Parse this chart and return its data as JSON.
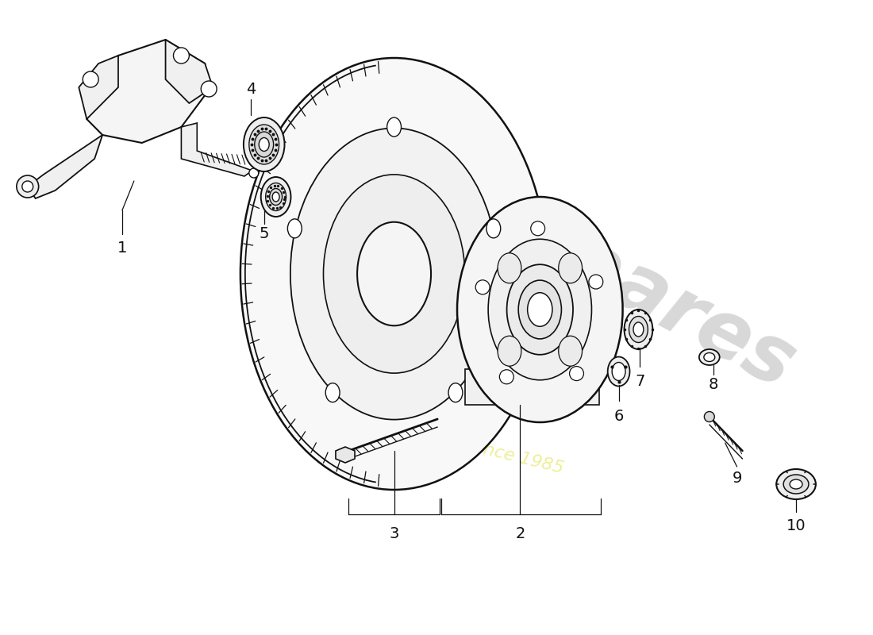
{
  "background_color": "#ffffff",
  "line_color": "#111111",
  "watermark_color1": "#d8d8d8",
  "watermark_color2": "#eeee99",
  "figsize": [
    11.0,
    8.0
  ],
  "dpi": 100
}
